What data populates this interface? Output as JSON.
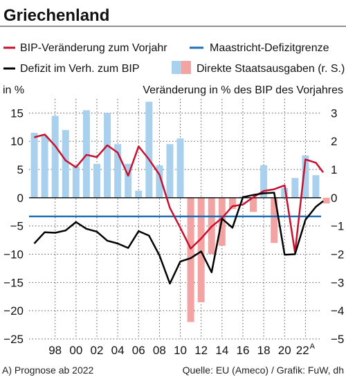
{
  "chart_data": {
    "type": "bar",
    "title": "Griechenland",
    "ylabel_left": "in %",
    "ylabel_right": "Veränderung in % des BIP des Vorjahres",
    "left_axis": {
      "min": -25,
      "max": 17.5,
      "ticks": [
        15,
        10,
        5,
        0,
        -5,
        -10,
        -15,
        -20,
        -25
      ]
    },
    "right_axis": {
      "min": -5,
      "max": 3.5,
      "ticks": [
        3,
        2,
        1,
        0,
        -1,
        -2,
        -3,
        -4,
        -5
      ]
    },
    "x_axis": {
      "min": 1995.5,
      "max": 2023.5,
      "tick_labels": [
        {
          "x": 1998,
          "label": "98"
        },
        {
          "x": 2000,
          "label": "00"
        },
        {
          "x": 2002,
          "label": "02"
        },
        {
          "x": 2004,
          "label": "04"
        },
        {
          "x": 2006,
          "label": "06"
        },
        {
          "x": 2008,
          "label": "08"
        },
        {
          "x": 2010,
          "label": "10"
        },
        {
          "x": 2012,
          "label": "12"
        },
        {
          "x": 2014,
          "label": "14"
        },
        {
          "x": 2016,
          "label": "16"
        },
        {
          "x": 2018,
          "label": "18"
        },
        {
          "x": 2020,
          "label": "20"
        },
        {
          "x": 2022,
          "label": "22",
          "superscript": "A"
        }
      ]
    },
    "grid": true,
    "zero_line_value": 0,
    "maastricht_value": -3.3,
    "legend": [
      {
        "name": "BIP-Veränderung zum Vorjahr",
        "kind": "line",
        "color": "#c8102e"
      },
      {
        "name": "Maastricht-Defizitgrenze",
        "kind": "line",
        "color": "#1f6fb8"
      },
      {
        "name": "Defizit im Verh. zum BIP",
        "kind": "line",
        "color": "#000000"
      },
      {
        "name": "Direkte Staatsausgaben (r. S.)",
        "kind": "bars",
        "colors": [
          "#a9d1ee",
          "#f4a3a3"
        ]
      }
    ],
    "series": [
      {
        "name": "BIP-Veränderung zum Vorjahr",
        "axis": "left",
        "color": "#c8102e",
        "points": [
          [
            1996,
            10.7
          ],
          [
            1997,
            11.2
          ],
          [
            1998,
            9.2
          ],
          [
            1999,
            6.6
          ],
          [
            2000,
            5.4
          ],
          [
            2001,
            7.6
          ],
          [
            2002,
            7.2
          ],
          [
            2003,
            9.3
          ],
          [
            2004,
            8.0
          ],
          [
            2005,
            3.9
          ],
          [
            2006,
            9.1
          ],
          [
            2007,
            6.8
          ],
          [
            2008,
            4.1
          ],
          [
            2009,
            -1.8
          ],
          [
            2010,
            -5.3
          ],
          [
            2011,
            -9.0
          ],
          [
            2012,
            -7.2
          ],
          [
            2013,
            -5.1
          ],
          [
            2014,
            -3.6
          ],
          [
            2015,
            -1.5
          ],
          [
            2016,
            -1.2
          ],
          [
            2017,
            0.1
          ],
          [
            2018,
            1.2
          ],
          [
            2019,
            1.5
          ],
          [
            2020,
            2.2
          ],
          [
            2021,
            -9.7
          ],
          [
            2022,
            6.8
          ],
          [
            2023,
            6.2
          ],
          [
            2023.7,
            4.5
          ]
        ]
      },
      {
        "name": "Defizit im Verh. zum BIP",
        "axis": "left",
        "color": "#000000",
        "points": [
          [
            1996,
            -8.1
          ],
          [
            1997,
            -6.1
          ],
          [
            1998,
            -6.2
          ],
          [
            1999,
            -5.8
          ],
          [
            2000,
            -4.3
          ],
          [
            2001,
            -5.5
          ],
          [
            2002,
            -6.0
          ],
          [
            2003,
            -7.6
          ],
          [
            2004,
            -8.1
          ],
          [
            2005,
            -8.9
          ],
          [
            2006,
            -5.9
          ],
          [
            2007,
            -6.7
          ],
          [
            2008,
            -10.2
          ],
          [
            2009,
            -15.2
          ],
          [
            2010,
            -11.3
          ],
          [
            2011,
            -10.7
          ],
          [
            2012,
            -9.5
          ],
          [
            2013,
            -13.2
          ],
          [
            2014,
            -3.7
          ],
          [
            2015,
            -5.3
          ],
          [
            2016,
            0.1
          ],
          [
            2017,
            0.5
          ],
          [
            2018,
            0.8
          ],
          [
            2019,
            0.9
          ],
          [
            2020,
            -10.1
          ],
          [
            2021,
            -10.0
          ],
          [
            2022,
            -3.9
          ],
          [
            2023,
            -1.6
          ],
          [
            2023.7,
            -0.6
          ]
        ]
      },
      {
        "name": "Direkte Staatsausgaben (r. S.)",
        "axis": "right",
        "type": "bar",
        "color_positive": "#a9d1ee",
        "color_negative": "#f4a3a3",
        "points": [
          [
            1996,
            2.3
          ],
          [
            1997,
            2.2
          ],
          [
            1998,
            2.9
          ],
          [
            1999,
            2.4
          ],
          [
            2000,
            1.1
          ],
          [
            2001,
            3.1
          ],
          [
            2002,
            1.2
          ],
          [
            2003,
            3.0
          ],
          [
            2004,
            1.9
          ],
          [
            2005,
            1.2
          ],
          [
            2006,
            0.25
          ],
          [
            2007,
            3.4
          ],
          [
            2008,
            1.15
          ],
          [
            2009,
            1.9
          ],
          [
            2010,
            2.1
          ],
          [
            2011,
            -4.4
          ],
          [
            2012,
            -3.7
          ],
          [
            2013,
            -2.0
          ],
          [
            2014,
            -1.7
          ],
          [
            2015,
            -0.4
          ],
          [
            2016,
            0.05
          ],
          [
            2017,
            -0.5
          ],
          [
            2018,
            1.15
          ],
          [
            2019,
            -1.6
          ],
          [
            2020,
            0.35
          ],
          [
            2021,
            0.7
          ],
          [
            2022,
            1.5
          ],
          [
            2023,
            0.8
          ],
          [
            2024,
            -0.2
          ]
        ]
      }
    ]
  },
  "footer": {
    "note": "A) Prognose ab 2022",
    "source": "Quelle: EU (Ameco) / Grafik: FuW, dh"
  }
}
